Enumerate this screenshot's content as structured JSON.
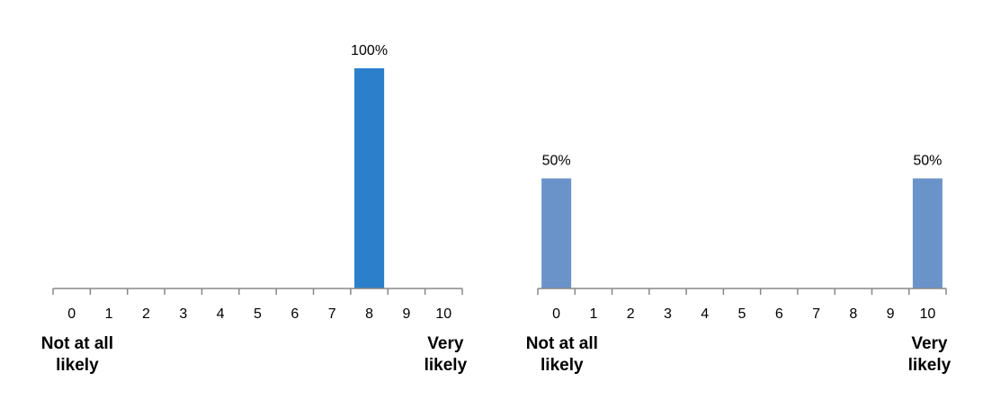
{
  "chart_data": [
    {
      "type": "bar",
      "categories": [
        "0",
        "1",
        "2",
        "3",
        "4",
        "5",
        "6",
        "7",
        "8",
        "9",
        "10"
      ],
      "values": [
        0,
        0,
        0,
        0,
        0,
        0,
        0,
        0,
        100,
        0,
        0
      ],
      "value_labels": [
        null,
        null,
        null,
        null,
        null,
        null,
        null,
        null,
        "100%",
        null,
        null
      ],
      "color": "#2b7fcb",
      "ylim": [
        0,
        100
      ],
      "annotations": [
        "Not at all likely",
        "Very likely"
      ]
    },
    {
      "type": "bar",
      "categories": [
        "0",
        "1",
        "2",
        "3",
        "4",
        "5",
        "6",
        "7",
        "8",
        "9",
        "10"
      ],
      "values": [
        50,
        0,
        0,
        0,
        0,
        0,
        0,
        0,
        0,
        0,
        50
      ],
      "value_labels": [
        "50%",
        null,
        null,
        null,
        null,
        null,
        null,
        null,
        null,
        null,
        "50%"
      ],
      "color": "#6a94c9",
      "ylim": [
        0,
        100
      ],
      "annotations": [
        "Not at all likely",
        "Very likely"
      ]
    }
  ]
}
